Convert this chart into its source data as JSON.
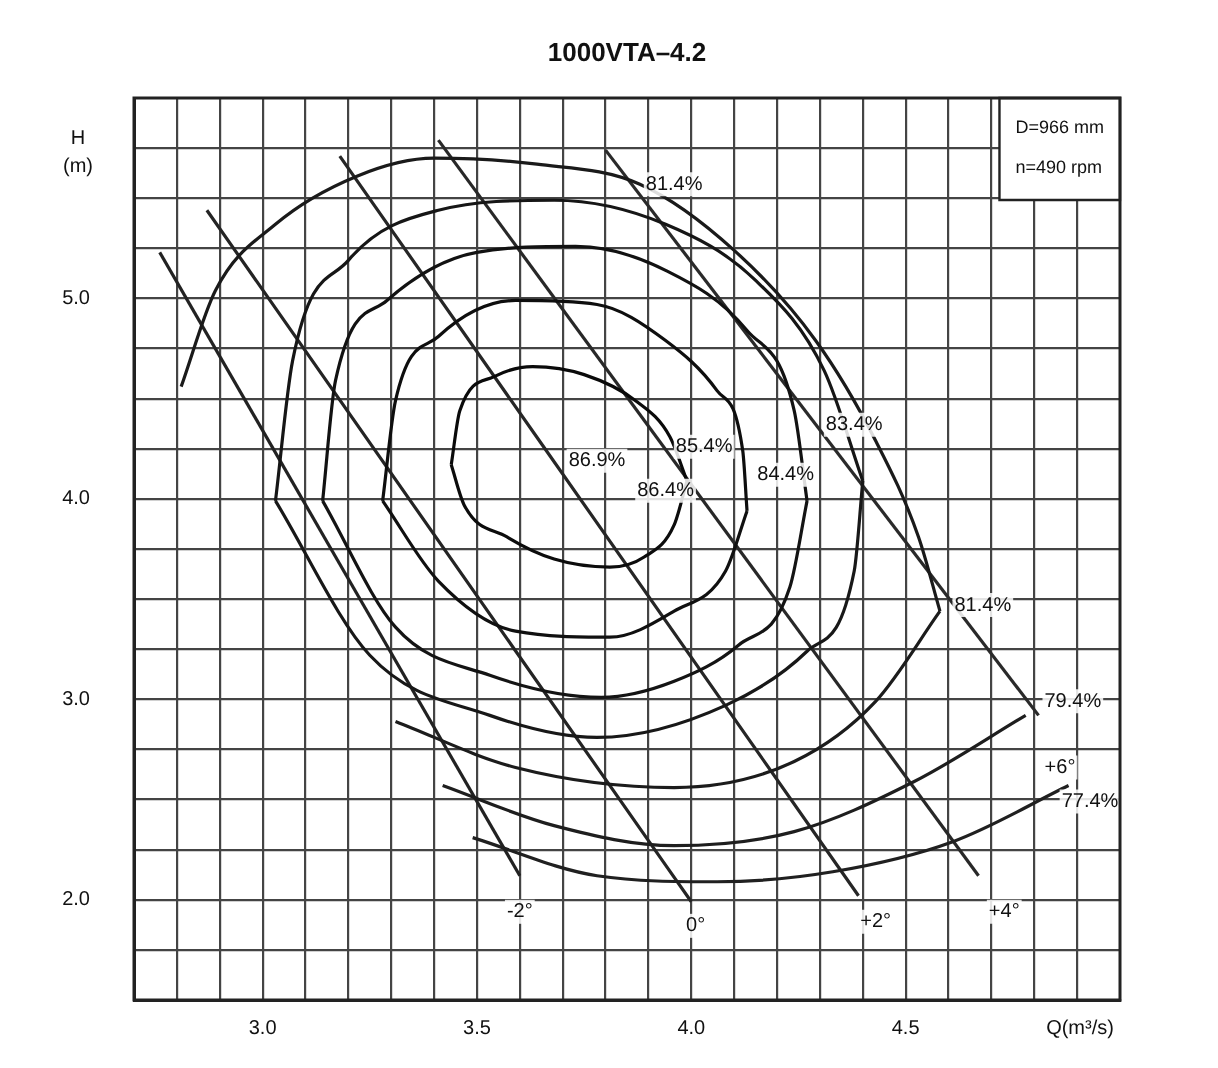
{
  "chart_data": {
    "type": "line",
    "title": "1000VTA–4.2",
    "xlabel": "Q(m³/s)",
    "ylabel": "H\n(m)",
    "xlim": [
      2.7,
      5.0
    ],
    "ylim": [
      1.5,
      6.0
    ],
    "xticks": [
      {
        "value": 2.8,
        "label": null
      },
      {
        "value": 2.9,
        "label": null
      },
      {
        "value": 3.0,
        "label": "3.0"
      },
      {
        "value": 3.1,
        "label": null
      },
      {
        "value": 3.2,
        "label": null
      },
      {
        "value": 3.3,
        "label": null
      },
      {
        "value": 3.4,
        "label": null
      },
      {
        "value": 3.5,
        "label": "3.5"
      },
      {
        "value": 3.6,
        "label": null
      },
      {
        "value": 3.7,
        "label": null
      },
      {
        "value": 3.8,
        "label": null
      },
      {
        "value": 3.9,
        "label": null
      },
      {
        "value": 4.0,
        "label": "4.0"
      },
      {
        "value": 4.1,
        "label": null
      },
      {
        "value": 4.2,
        "label": null
      },
      {
        "value": 4.3,
        "label": null
      },
      {
        "value": 4.4,
        "label": null
      },
      {
        "value": 4.5,
        "label": "4.5"
      },
      {
        "value": 4.6,
        "label": null
      },
      {
        "value": 4.7,
        "label": null
      },
      {
        "value": 4.8,
        "label": null
      },
      {
        "value": 4.9,
        "label": null
      }
    ],
    "yticks": [
      {
        "value": 1.75,
        "label": null
      },
      {
        "value": 2.0,
        "label": "2.0"
      },
      {
        "value": 2.25,
        "label": null
      },
      {
        "value": 2.5,
        "label": null
      },
      {
        "value": 2.75,
        "label": null
      },
      {
        "value": 3.0,
        "label": "3.0"
      },
      {
        "value": 3.25,
        "label": null
      },
      {
        "value": 3.5,
        "label": null
      },
      {
        "value": 3.75,
        "label": null
      },
      {
        "value": 4.0,
        "label": "4.0"
      },
      {
        "value": 4.25,
        "label": null
      },
      {
        "value": 4.5,
        "label": null
      },
      {
        "value": 4.75,
        "label": null
      },
      {
        "value": 5.0,
        "label": "5.0"
      },
      {
        "value": 5.25,
        "label": null
      },
      {
        "value": 5.5,
        "label": null
      },
      {
        "value": 5.75,
        "label": null
      }
    ],
    "grid": true,
    "legend": false,
    "marker": "none",
    "line_style": "solid",
    "series": [
      {
        "color": "#0a0a0a",
        "x": [
          3.44,
          3.46,
          3.54,
          3.63,
          3.75,
          3.87,
          3.95,
          3.99
        ],
        "values": [
          4.17,
          4.44,
          4.61,
          4.66,
          4.62,
          4.49,
          4.31,
          4.09
        ]
      },
      {
        "color": "#0c0c0c",
        "x": [
          3.44,
          3.47,
          3.57,
          3.68,
          3.81,
          3.89,
          3.96,
          3.99
        ],
        "values": [
          4.17,
          3.97,
          3.81,
          3.7,
          3.66,
          3.71,
          3.87,
          4.09
        ]
      },
      {
        "color": "#0e0e0e",
        "x": [
          3.28,
          3.31,
          3.41,
          3.59,
          3.78,
          3.94,
          4.06,
          4.12,
          4.13
        ],
        "values": [
          3.99,
          4.49,
          4.81,
          4.99,
          4.97,
          4.79,
          4.54,
          4.24,
          3.94
        ]
      },
      {
        "color": "#101010",
        "x": [
          3.28,
          3.41,
          3.59,
          3.81,
          3.96,
          4.08,
          4.13
        ],
        "values": [
          3.99,
          3.59,
          3.34,
          3.31,
          3.44,
          3.64,
          3.94
        ]
      },
      {
        "color": "#121212",
        "x": [
          3.14,
          3.17,
          3.29,
          3.5,
          3.73,
          3.94,
          4.13,
          4.24,
          4.27
        ],
        "values": [
          3.99,
          4.59,
          4.99,
          5.23,
          5.26,
          5.14,
          4.84,
          4.44,
          3.99
        ]
      },
      {
        "color": "#141414",
        "x": [
          3.14,
          3.31,
          3.53,
          3.79,
          3.96,
          4.11,
          4.23,
          4.27
        ],
        "values": [
          3.99,
          3.36,
          3.12,
          3.01,
          3.09,
          3.27,
          3.56,
          3.99
        ]
      },
      {
        "color": "#161616",
        "x": [
          3.03,
          3.07,
          3.2,
          3.41,
          3.68,
          3.94,
          4.15,
          4.31,
          4.4
        ],
        "values": [
          3.99,
          4.69,
          5.19,
          5.44,
          5.49,
          5.37,
          5.09,
          4.64,
          4.09
        ]
      },
      {
        "color": "#181818",
        "x": [
          3.03,
          3.25,
          3.53,
          3.78,
          4.08,
          4.27,
          4.38,
          4.4
        ],
        "values": [
          3.99,
          3.22,
          2.92,
          2.81,
          2.97,
          3.24,
          3.64,
          4.09
        ]
      },
      {
        "color": "#1a1a1a",
        "x": [
          2.81,
          2.89,
          3.03,
          3.22,
          3.4,
          3.64,
          3.88,
          4.1,
          4.29,
          4.43,
          4.53,
          4.58
        ],
        "values": [
          4.56,
          5.04,
          5.37,
          5.61,
          5.7,
          5.67,
          5.57,
          5.24,
          4.79,
          4.29,
          3.81,
          3.44
        ]
      },
      {
        "color": "#1c1c1c",
        "x": [
          3.31,
          3.59,
          3.96,
          4.24,
          4.43,
          4.58
        ],
        "values": [
          2.89,
          2.66,
          2.56,
          2.69,
          2.99,
          3.44
        ]
      },
      {
        "color": "#1e1e1e",
        "x": [
          3.42,
          3.68,
          3.96,
          4.24,
          4.52,
          4.78
        ],
        "values": [
          2.57,
          2.37,
          2.27,
          2.34,
          2.59,
          2.92
        ]
      },
      {
        "color": "#202020",
        "x": [
          3.49,
          3.78,
          4.06,
          4.33,
          4.61,
          4.88
        ],
        "values": [
          2.31,
          2.12,
          2.09,
          2.14,
          2.29,
          2.57
        ]
      },
      {
        "color": "#222222",
        "x": [
          2.76,
          3.6
        ],
        "values": [
          5.23,
          2.12
        ]
      },
      {
        "color": "#242424",
        "x": [
          2.87,
          4.0
        ],
        "values": [
          5.44,
          1.99
        ]
      },
      {
        "color": "#262626",
        "x": [
          3.18,
          4.39
        ],
        "values": [
          5.71,
          2.02
        ]
      },
      {
        "color": "#282828",
        "x": [
          3.41,
          4.67
        ],
        "values": [
          5.79,
          2.12
        ]
      },
      {
        "color": "#2a2a2a",
        "x": [
          3.8,
          4.81
        ],
        "values": [
          5.74,
          2.92
        ]
      }
    ],
    "annotations": [
      {
        "text": "86.9%",
        "x": 3.78,
        "y": 4.19
      },
      {
        "text": "86.4%",
        "x": 3.94,
        "y": 4.04
      },
      {
        "text": "85.4%",
        "x": 4.03,
        "y": 4.26
      },
      {
        "text": "84.4%",
        "x": 4.22,
        "y": 4.12
      },
      {
        "text": "83.4%",
        "x": 4.38,
        "y": 4.37
      },
      {
        "text": "81.4%",
        "x": 3.96,
        "y": 5.57
      },
      {
        "text": "81.4%",
        "x": 4.68,
        "y": 3.47
      },
      {
        "text": "79.4%",
        "x": 4.89,
        "y": 2.99
      },
      {
        "text": "77.4%",
        "x": 4.93,
        "y": 2.49
      },
      {
        "text": "-2°",
        "x": 3.6,
        "y": 1.94
      },
      {
        "text": "0°",
        "x": 4.01,
        "y": 1.87
      },
      {
        "text": "+2°",
        "x": 4.43,
        "y": 1.89
      },
      {
        "text": "+4°",
        "x": 4.73,
        "y": 1.94
      },
      {
        "text": "+6°",
        "x": 4.86,
        "y": 2.66
      },
      "D=966 mm",
      "n=490 rpm"
    ]
  }
}
